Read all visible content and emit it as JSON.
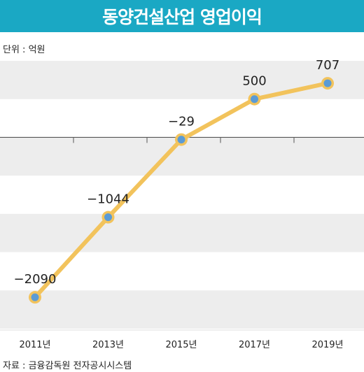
{
  "chart_data": {
    "type": "line",
    "title": "동양건설산업 영업이익",
    "unit_label": "단위 : 억원",
    "source": "자료 : 금융감독원 전자공시시스템",
    "categories": [
      "2011년",
      "2013년",
      "2015년",
      "2017년",
      "2019년"
    ],
    "series": [
      {
        "values": [
          -2090,
          -1044,
          -29,
          500,
          707
        ]
      }
    ],
    "data_labels": [
      "−2090",
      "−1044",
      "−29",
      "500",
      "707"
    ],
    "ylim": [
      -2500,
      1000
    ],
    "grid": "horizontal bands",
    "colors": {
      "line": "#f2c35c",
      "point": "#5b9bd5",
      "title_bg": "#1aa8c4",
      "band": "#ededed"
    }
  }
}
